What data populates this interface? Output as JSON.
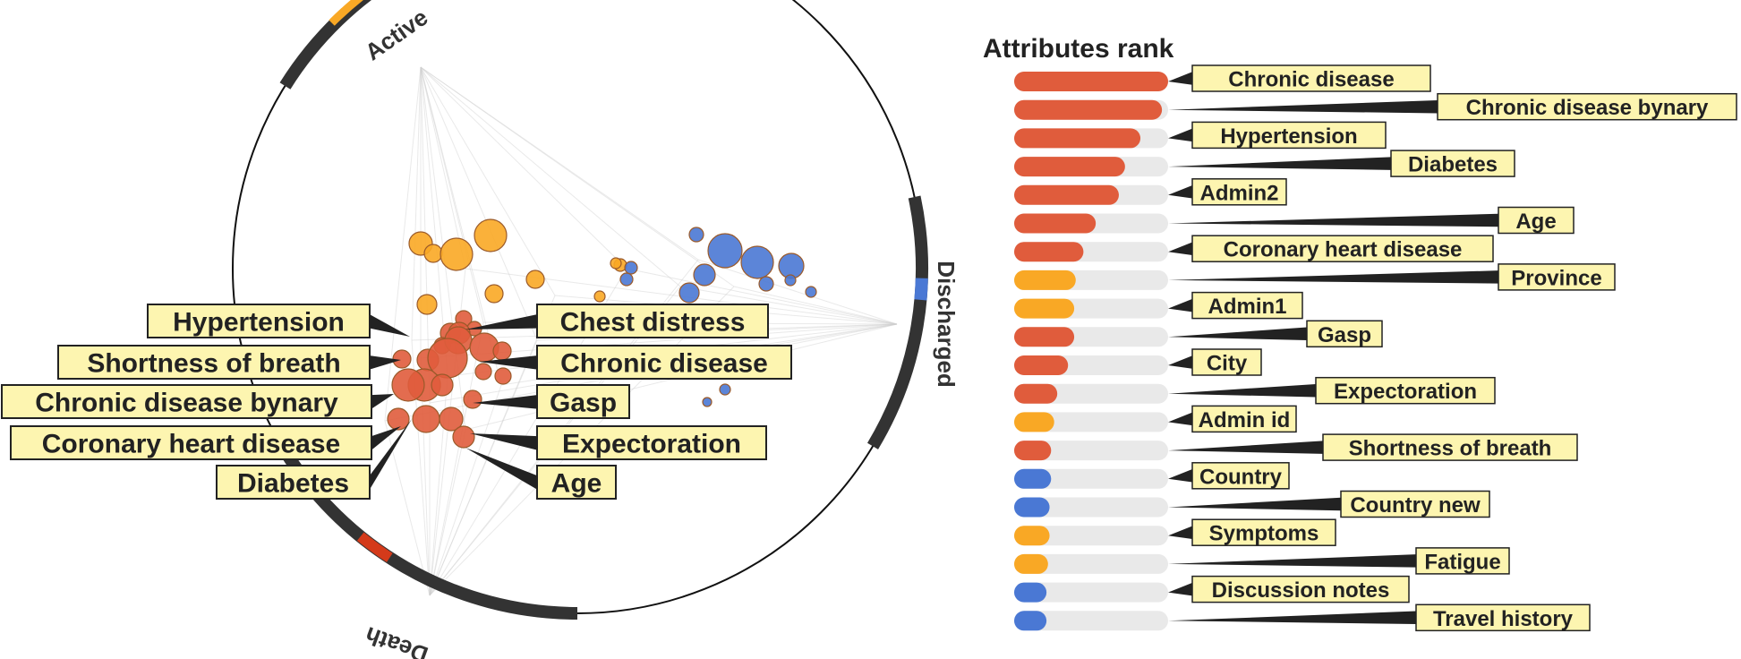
{
  "chart_data": [
    {
      "type": "scatter",
      "variant": "radial-bubble",
      "title": "",
      "categories": [
        "Active",
        "Discharged",
        "Death"
      ],
      "colors": {
        "Active": "#f9a825",
        "Discharged": "#4a78d4",
        "Death": "#e05c3c",
        "ring": "#333333"
      },
      "bubble_labels": [
        "Hypertension",
        "Shortness of breath",
        "Chronic disease bynary",
        "Coronary heart disease",
        "Diabetes",
        "Chest distress",
        "Chronic disease",
        "Gasp",
        "Expectoration",
        "Age"
      ]
    },
    {
      "type": "bar",
      "orientation": "horizontal",
      "title": "Attributes rank",
      "xlim": [
        0,
        1
      ],
      "categories": [
        "Chronic disease",
        "Chronic disease bynary",
        "Hypertension",
        "Diabetes",
        "Admin2",
        "Age",
        "Coronary heart disease",
        "Province",
        "Admin1",
        "Gasp",
        "City",
        "Expectoration",
        "Admin id",
        "Shortness of breath",
        "Country",
        "Country new",
        "Symptoms",
        "Fatigue",
        "Discussion notes",
        "Travel history"
      ],
      "values": [
        1.0,
        0.96,
        0.82,
        0.72,
        0.68,
        0.53,
        0.45,
        0.4,
        0.39,
        0.39,
        0.35,
        0.28,
        0.26,
        0.24,
        0.24,
        0.23,
        0.23,
        0.22,
        0.21,
        0.21
      ],
      "bar_colors": [
        "#e05c3c",
        "#e05c3c",
        "#e05c3c",
        "#e05c3c",
        "#e05c3c",
        "#e05c3c",
        "#e05c3c",
        "#f9a825",
        "#f9a825",
        "#e05c3c",
        "#e05c3c",
        "#e05c3c",
        "#f9a825",
        "#e05c3c",
        "#4a78d4",
        "#4a78d4",
        "#f9a825",
        "#f9a825",
        "#4a78d4",
        "#4a78d4"
      ]
    }
  ]
}
